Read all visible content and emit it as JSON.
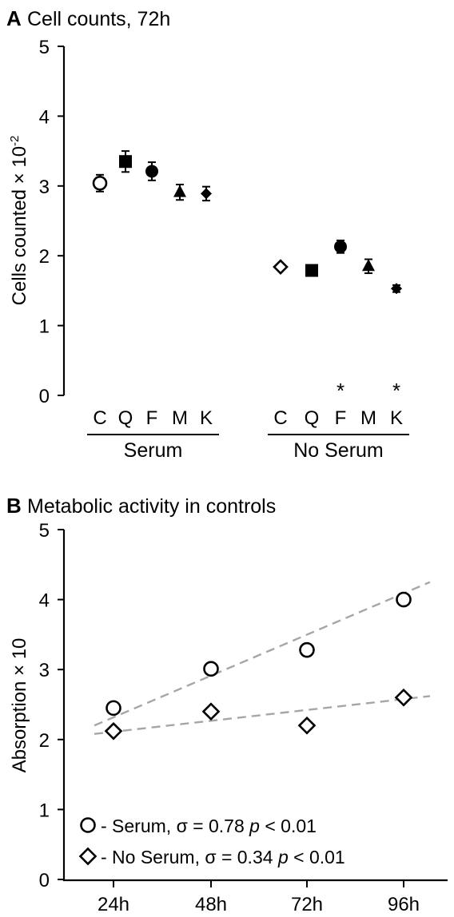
{
  "chart_data": [
    {
      "panel_label": "A",
      "title": "Cell counts, 72h",
      "type": "scatter",
      "ylabel": "Cells counted × 10",
      "ylabel_exponent": "-2",
      "ylim": [
        0,
        5
      ],
      "yticks": [
        "0",
        "1",
        "2",
        "3",
        "4",
        "5"
      ],
      "groups": [
        {
          "name": "Serum",
          "points": [
            {
              "category": "C",
              "value": 3.04,
              "error": 0.12,
              "marker": "circle-open",
              "sig": ""
            },
            {
              "category": "Q",
              "value": 3.35,
              "error": 0.15,
              "marker": "square",
              "sig": ""
            },
            {
              "category": "F",
              "value": 3.21,
              "error": 0.13,
              "marker": "circle",
              "sig": ""
            },
            {
              "category": "M",
              "value": 2.91,
              "error": 0.11,
              "marker": "triangle",
              "sig": ""
            },
            {
              "category": "K",
              "value": 2.89,
              "error": 0.1,
              "marker": "diamond",
              "sig": ""
            }
          ]
        },
        {
          "name": "No Serum",
          "points": [
            {
              "category": "C",
              "value": 1.84,
              "error": 0.0,
              "marker": "diamond-open",
              "sig": ""
            },
            {
              "category": "Q",
              "value": 1.79,
              "error": 0.06,
              "marker": "square",
              "sig": ""
            },
            {
              "category": "F",
              "value": 2.13,
              "error": 0.09,
              "marker": "circle",
              "sig": "*"
            },
            {
              "category": "M",
              "value": 1.85,
              "error": 0.1,
              "marker": "triangle",
              "sig": ""
            },
            {
              "category": "K",
              "value": 1.53,
              "error": 0.05,
              "marker": "diamond",
              "sig": "*"
            }
          ]
        }
      ]
    },
    {
      "panel_label": "B",
      "title": "Metabolic activity in controls",
      "type": "scatter",
      "ylabel": "Absorption × 10",
      "ylim": [
        0,
        5
      ],
      "yticks": [
        "0",
        "1",
        "2",
        "3",
        "4",
        "5"
      ],
      "categories": [
        "24h",
        "48h",
        "72h",
        "96h"
      ],
      "series": [
        {
          "name": "Serum",
          "legend_label": "- Serum, σ = 0.78 ",
          "p_symbol": "p",
          "p_text": " < 0.01",
          "marker": "circle-open",
          "values": [
            2.45,
            3.01,
            3.28,
            4.0
          ],
          "trend": [
            2.2,
            4.25
          ]
        },
        {
          "name": "No Serum",
          "legend_label": "- No Serum, σ = 0.34 ",
          "p_symbol": "p",
          "p_text": " < 0.01",
          "marker": "diamond-open",
          "values": [
            2.12,
            2.4,
            2.2,
            2.6
          ],
          "trend": [
            2.08,
            2.62
          ]
        }
      ],
      "trend_color": "#a6a6a6"
    }
  ]
}
